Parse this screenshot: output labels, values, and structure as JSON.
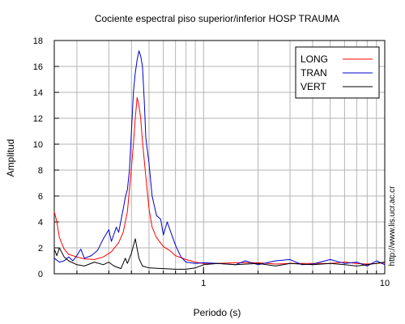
{
  "chart_data": {
    "type": "line",
    "title": "Cociente espectral piso superior/inferior  HOSP TRAUMA",
    "xlabel": "Periodo (s)",
    "ylabel": "Amplitud",
    "x_scale": "log",
    "xlim": [
      0.15,
      10
    ],
    "ylim": [
      0,
      18
    ],
    "x_tick_labels": [
      {
        "v": 1,
        "label": "1"
      },
      {
        "v": 10,
        "label": "10"
      }
    ],
    "y_ticks": [
      0,
      2,
      4,
      6,
      8,
      10,
      12,
      14,
      16,
      18
    ],
    "grid": true,
    "legend_position": "top-right",
    "side_text": "http://www.lis.ucr.ac.cr",
    "series": [
      {
        "name": "LONG",
        "color": "#ff0000",
        "points": [
          [
            0.15,
            4.8
          ],
          [
            0.155,
            4.0
          ],
          [
            0.16,
            2.8
          ],
          [
            0.17,
            1.9
          ],
          [
            0.18,
            1.5
          ],
          [
            0.2,
            1.3
          ],
          [
            0.22,
            1.15
          ],
          [
            0.25,
            1.1
          ],
          [
            0.28,
            1.3
          ],
          [
            0.31,
            1.7
          ],
          [
            0.34,
            2.4
          ],
          [
            0.36,
            3.2
          ],
          [
            0.38,
            4.8
          ],
          [
            0.39,
            6.5
          ],
          [
            0.4,
            8.2
          ],
          [
            0.41,
            10.0
          ],
          [
            0.42,
            12.0
          ],
          [
            0.43,
            13.6
          ],
          [
            0.44,
            13.0
          ],
          [
            0.45,
            12.0
          ],
          [
            0.46,
            10.2
          ],
          [
            0.48,
            7.5
          ],
          [
            0.5,
            5.0
          ],
          [
            0.52,
            3.6
          ],
          [
            0.55,
            2.8
          ],
          [
            0.6,
            2.1
          ],
          [
            0.65,
            1.8
          ],
          [
            0.7,
            1.4
          ],
          [
            0.8,
            1.1
          ],
          [
            0.9,
            0.9
          ],
          [
            1.0,
            0.8
          ],
          [
            1.2,
            0.8
          ],
          [
            1.5,
            0.85
          ],
          [
            2.0,
            0.85
          ],
          [
            2.5,
            0.75
          ],
          [
            3.0,
            0.8
          ],
          [
            4.0,
            0.8
          ],
          [
            5.0,
            0.8
          ],
          [
            6.0,
            0.9
          ],
          [
            7.0,
            0.8
          ],
          [
            8.0,
            0.75
          ],
          [
            9.0,
            0.8
          ],
          [
            10.0,
            0.85
          ]
        ]
      },
      {
        "name": "TRAN",
        "color": "#0000cc",
        "points": [
          [
            0.15,
            1.2
          ],
          [
            0.16,
            0.9
          ],
          [
            0.17,
            1.0
          ],
          [
            0.18,
            1.3
          ],
          [
            0.19,
            1.0
          ],
          [
            0.2,
            1.4
          ],
          [
            0.21,
            1.9
          ],
          [
            0.22,
            1.2
          ],
          [
            0.24,
            1.4
          ],
          [
            0.26,
            1.8
          ],
          [
            0.28,
            2.7
          ],
          [
            0.3,
            3.4
          ],
          [
            0.31,
            2.5
          ],
          [
            0.33,
            3.6
          ],
          [
            0.34,
            3.2
          ],
          [
            0.36,
            5.0
          ],
          [
            0.37,
            5.9
          ],
          [
            0.38,
            6.5
          ],
          [
            0.39,
            8.0
          ],
          [
            0.4,
            11.0
          ],
          [
            0.41,
            14.0
          ],
          [
            0.42,
            15.5
          ],
          [
            0.43,
            16.5
          ],
          [
            0.44,
            17.2
          ],
          [
            0.45,
            16.8
          ],
          [
            0.46,
            16.0
          ],
          [
            0.47,
            13.5
          ],
          [
            0.48,
            10.5
          ],
          [
            0.5,
            8.5
          ],
          [
            0.52,
            6.0
          ],
          [
            0.55,
            4.5
          ],
          [
            0.58,
            4.2
          ],
          [
            0.6,
            3.0
          ],
          [
            0.63,
            4.0
          ],
          [
            0.66,
            3.2
          ],
          [
            0.7,
            2.2
          ],
          [
            0.75,
            1.3
          ],
          [
            0.8,
            0.9
          ],
          [
            0.9,
            0.8
          ],
          [
            1.0,
            0.85
          ],
          [
            1.2,
            0.8
          ],
          [
            1.5,
            0.7
          ],
          [
            1.7,
            1.0
          ],
          [
            2.0,
            0.7
          ],
          [
            2.5,
            1.0
          ],
          [
            3.0,
            1.1
          ],
          [
            3.5,
            0.7
          ],
          [
            4.0,
            0.75
          ],
          [
            5.0,
            1.1
          ],
          [
            6.0,
            0.8
          ],
          [
            7.0,
            0.9
          ],
          [
            8.0,
            0.6
          ],
          [
            9.0,
            1.0
          ],
          [
            10.0,
            0.7
          ]
        ]
      },
      {
        "name": "VERT",
        "color": "#000000",
        "points": [
          [
            0.15,
            1.9
          ],
          [
            0.155,
            1.4
          ],
          [
            0.16,
            2.0
          ],
          [
            0.17,
            1.3
          ],
          [
            0.18,
            1.0
          ],
          [
            0.2,
            0.7
          ],
          [
            0.22,
            0.6
          ],
          [
            0.25,
            0.9
          ],
          [
            0.28,
            0.7
          ],
          [
            0.3,
            0.9
          ],
          [
            0.32,
            0.6
          ],
          [
            0.35,
            0.4
          ],
          [
            0.37,
            1.2
          ],
          [
            0.38,
            0.8
          ],
          [
            0.4,
            1.6
          ],
          [
            0.42,
            2.7
          ],
          [
            0.44,
            1.2
          ],
          [
            0.46,
            0.6
          ],
          [
            0.5,
            0.45
          ],
          [
            0.6,
            0.4
          ],
          [
            0.7,
            0.35
          ],
          [
            0.8,
            0.35
          ],
          [
            0.9,
            0.45
          ],
          [
            1.0,
            0.7
          ],
          [
            1.2,
            0.8
          ],
          [
            1.5,
            0.7
          ],
          [
            2.0,
            0.8
          ],
          [
            2.5,
            0.6
          ],
          [
            3.0,
            0.8
          ],
          [
            4.0,
            0.7
          ],
          [
            5.0,
            0.8
          ],
          [
            6.0,
            0.7
          ],
          [
            7.0,
            0.6
          ],
          [
            8.0,
            0.7
          ],
          [
            10.0,
            0.9
          ]
        ]
      }
    ]
  }
}
